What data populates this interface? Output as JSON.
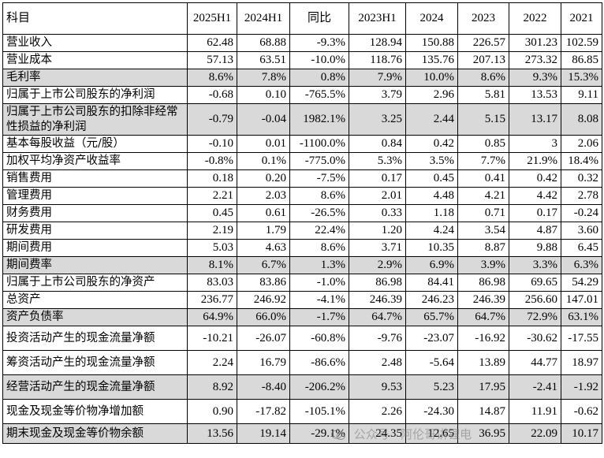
{
  "table": {
    "headers": [
      "科目",
      "2025H1",
      "2024H1",
      "同比",
      "2023H1",
      "2024",
      "2023",
      "2022",
      "2021"
    ],
    "rows": [
      {
        "label": "营业收入",
        "values": [
          "62.48",
          "68.88",
          "-9.3%",
          "128.94",
          "150.88",
          "226.57",
          "301.23",
          "102.59"
        ],
        "shaded": false
      },
      {
        "label": "营业成本",
        "values": [
          "57.13",
          "63.51",
          "-10.0%",
          "118.76",
          "135.76",
          "207.13",
          "273.32",
          "86.85"
        ],
        "shaded": false
      },
      {
        "label": "毛利率",
        "values": [
          "8.6%",
          "7.8%",
          "0.8%",
          "7.9%",
          "10.0%",
          "8.6%",
          "9.3%",
          "15.3%"
        ],
        "shaded": true
      },
      {
        "label": "归属于上市公司股东的净利润",
        "values": [
          "-0.68",
          "0.10",
          "-765.5%",
          "3.79",
          "2.96",
          "5.81",
          "13.53",
          "9.11"
        ],
        "shaded": false
      },
      {
        "label": "归属于上市公司股东的扣除非经常性损益的净利润",
        "values": [
          "-0.79",
          "-0.04",
          "1982.1%",
          "3.25",
          "2.44",
          "5.15",
          "13.17",
          "8.08"
        ],
        "shaded": true
      },
      {
        "label": "基本每股收益（元/股）",
        "values": [
          "-0.10",
          "0.01",
          "-1100.0%",
          "0.84",
          "0.42",
          "0.85",
          "3",
          "2.06"
        ],
        "shaded": false
      },
      {
        "label": "加权平均净资产收益率",
        "values": [
          "-0.8%",
          "0.1%",
          "-775.0%",
          "5.3%",
          "3.5%",
          "7.7%",
          "21.9%",
          "18.4%"
        ],
        "shaded": false
      },
      {
        "label": "销售费用",
        "values": [
          "0.18",
          "0.20",
          "-7.5%",
          "0.17",
          "0.45",
          "0.41",
          "0.42",
          "0.32"
        ],
        "shaded": false
      },
      {
        "label": "管理费用",
        "values": [
          "2.21",
          "2.03",
          "8.6%",
          "2.01",
          "4.48",
          "4.21",
          "4.42",
          "2.78"
        ],
        "shaded": false
      },
      {
        "label": "财务费用",
        "values": [
          "0.45",
          "0.61",
          "-26.5%",
          "0.33",
          "1.18",
          "0.71",
          "0.17",
          "-0.24"
        ],
        "shaded": false
      },
      {
        "label": "研发费用",
        "values": [
          "2.19",
          "1.79",
          "22.4%",
          "1.20",
          "4.24",
          "3.54",
          "4.87",
          "3.60"
        ],
        "shaded": false
      },
      {
        "label": "期间费用",
        "values": [
          "5.03",
          "4.63",
          "8.6%",
          "3.71",
          "10.35",
          "8.87",
          "9.88",
          "6.45"
        ],
        "shaded": false
      },
      {
        "label": "期间费率",
        "values": [
          "8.1%",
          "6.7%",
          "1.3%",
          "2.9%",
          "6.9%",
          "3.9%",
          "3.3%",
          "6.3%"
        ],
        "shaded": true
      },
      {
        "label": "归属于上市公司股东的净资产",
        "values": [
          "83.03",
          "83.86",
          "-1.0%",
          "86.98",
          "84.41",
          "86.98",
          "69.65",
          "54.29"
        ],
        "shaded": false
      },
      {
        "label": "总资产",
        "values": [
          "236.77",
          "246.92",
          "-4.1%",
          "246.39",
          "246.23",
          "246.39",
          "256.60",
          "147.01"
        ],
        "shaded": false
      },
      {
        "label": "资产负债率",
        "values": [
          "64.9%",
          "66.0%",
          "-1.7%",
          "64.7%",
          "65.7%",
          "64.7%",
          "72.9%",
          "63.1%"
        ],
        "shaded": true
      },
      {
        "label": "投资活动产生的现金流量净额",
        "values": [
          "-10.21",
          "-26.07",
          "-60.8%",
          "-9.76",
          "-23.07",
          "-16.92",
          "-30.62",
          "-17.55"
        ],
        "shaded": false
      },
      {
        "label": "筹资活动产生的现金流量净额",
        "values": [
          "2.24",
          "16.79",
          "-86.6%",
          "2.48",
          "-5.64",
          "13.89",
          "44.77",
          "18.97"
        ],
        "shaded": false
      },
      {
        "label": "经营活动产生的现金流量净额",
        "values": [
          "8.92",
          "-8.40",
          "-206.2%",
          "9.53",
          "5.23",
          "17.95",
          "-2.41",
          "-1.92"
        ],
        "shaded": true
      },
      {
        "label": "现金及现金等价物净增加额",
        "values": [
          "0.90",
          "-17.82",
          "-105.1%",
          "2.26",
          "-24.30",
          "14.87",
          "11.91",
          "-0.62"
        ],
        "shaded": false
      },
      {
        "label": "期末现金及现金等价物余额",
        "values": [
          "13.56",
          "19.14",
          "-29.1%",
          "24.35",
          "12.65",
          "36.95",
          "22.09",
          "10.17"
        ],
        "shaded": true
      }
    ]
  },
  "watermark": {
    "text": "公众号 · 阿伦哥讲锂电",
    "icon": "wechat-icon"
  }
}
